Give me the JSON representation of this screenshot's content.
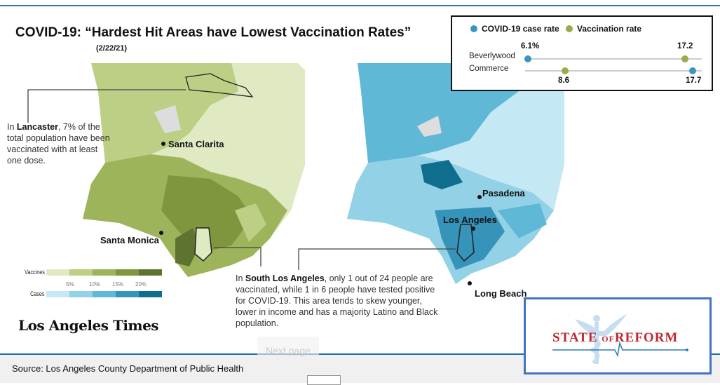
{
  "title": "COVID-19: “Hardest Hit Areas  have Lowest Vaccination Rates”",
  "date": "(2/22/21)",
  "places": {
    "santa_clarita": "Santa Clarita",
    "santa_monica": "Santa Monica",
    "pasadena": "Pasadena",
    "los_angeles": "Los Angeles",
    "long_beach": "Long Beach"
  },
  "notes": {
    "lancaster_bold": "Lancaster",
    "lancaster_pre": "In ",
    "lancaster_text": ", 7% of the total population have been vaccinated with at least one dose.",
    "sla_pre": "In ",
    "sla_bold": "South Los Angeles",
    "sla_text": ", only 1 out of 24 people are vaccinated, while 1 in 6 people have tested positive for COVID-19. This area tends to skew younger, lower in income and has a majority Latino and Black population."
  },
  "scale": {
    "vaccines_label": "Vaccines",
    "cases_label": "Cases",
    "ticks": [
      "5%",
      "10%",
      "15%",
      "20%"
    ],
    "vaccine_colors": [
      "#dfeac2",
      "#bccf84",
      "#9db45a",
      "#7f963e",
      "#5f7330"
    ],
    "case_colors": [
      "#c4e9f4",
      "#93d2e6",
      "#5fb8d6",
      "#3693b9",
      "#0f6d8e"
    ]
  },
  "comparison": {
    "legend": [
      {
        "label": "COVID-19 case rate",
        "color": "#3a96be"
      },
      {
        "label": "Vaccination rate",
        "color": "#9aab4b"
      }
    ],
    "rows": [
      {
        "name": "Beverlywood",
        "case_rate": 6.1,
        "case_label": "6.1%",
        "vacc_rate": 17.2,
        "vacc_label": "17.2"
      },
      {
        "name": "Commerce",
        "case_rate": 17.7,
        "case_label": "17.7",
        "vacc_rate": 8.6,
        "vacc_label": "8.6"
      }
    ]
  },
  "logo": "Los Angeles Times",
  "footer": {
    "source": "Source: Los Angeles County Department of Public Health",
    "next_page": "Next page"
  },
  "partner_logo": {
    "text_a": "STATE ",
    "text_of": "OF",
    "text_b": "REFORM"
  }
}
